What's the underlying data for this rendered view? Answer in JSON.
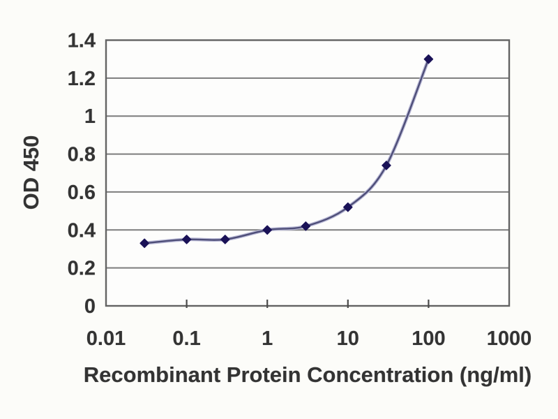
{
  "figure": {
    "background": "#fcfcf9"
  },
  "chart_data": {
    "type": "line",
    "title": "",
    "xlabel": "Recombinant Protein Concentration (ng/ml)",
    "ylabel": "OD 450",
    "x_scale": "log",
    "xlim": [
      0.01,
      1000
    ],
    "ylim": [
      0,
      1.4
    ],
    "x_ticks": [
      0.01,
      0.1,
      1,
      10,
      100,
      1000
    ],
    "y_tick_step": 0.2,
    "grid": "horizontal-only",
    "legend": "none",
    "marker": "diamond",
    "x": [
      0.03,
      0.1,
      0.3,
      1,
      3,
      10,
      30,
      100
    ],
    "series": [
      {
        "name": "OD 450",
        "values": [
          0.33,
          0.35,
          0.35,
          0.4,
          0.42,
          0.52,
          0.74,
          1.3
        ]
      }
    ],
    "colors": {
      "line": "#4e4e78",
      "line_halo": "#b9b9d6",
      "marker": "#1a1257",
      "grid": "#7d7d7d",
      "axis_border": "#636363",
      "tick_mark": "#4a4a4a",
      "text": "#333333",
      "plot_background": "#fdfdfc"
    }
  }
}
